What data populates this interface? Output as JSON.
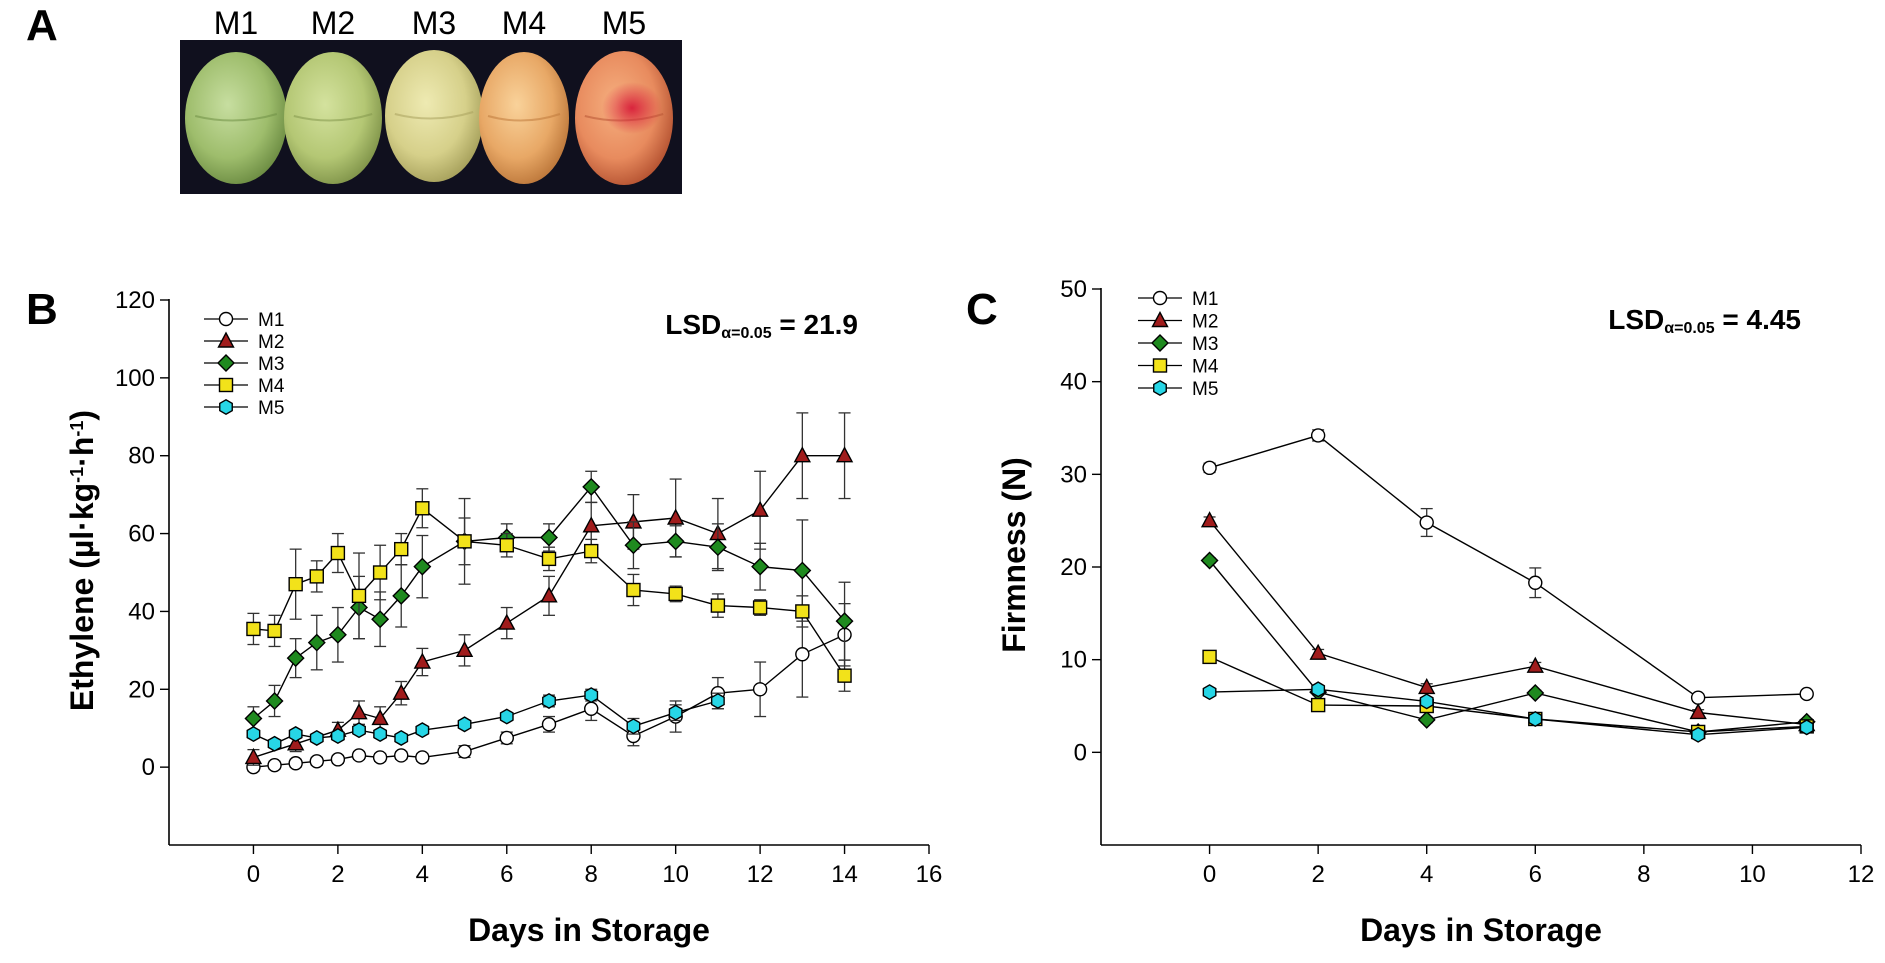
{
  "panel_a": {
    "letter": "A",
    "labels": [
      "M1",
      "M2",
      "M3",
      "M4",
      "M5"
    ],
    "fruit_colors": [
      {
        "light": "#c7dea0",
        "base": "#9ebd6c",
        "dark": "#6f8f45"
      },
      {
        "light": "#d4e29e",
        "base": "#b4c774",
        "dark": "#83974c"
      },
      {
        "light": "#eeeab2",
        "base": "#d6d08a",
        "dark": "#a9a35e"
      },
      {
        "light": "#f9d29a",
        "base": "#e8a866",
        "dark": "#bf7a3d"
      },
      {
        "light": "#f6b080",
        "base": "#e88b5e",
        "dark": "#b85634"
      }
    ],
    "blush_color": "#d81e3a",
    "background_color": "#10101e"
  },
  "chart_data": [
    {
      "panel": "B",
      "type": "line",
      "xlabel": "Days in Storage",
      "ylabel": "Ethylene (µl·kg⁻¹·h⁻¹)",
      "ylabel_parts": {
        "main": "Ethylene (µl·kg",
        "exp1": "-1",
        "mid": "·h",
        "exp2": "-1",
        "end": ")"
      },
      "xlim": [
        -2,
        16
      ],
      "ylim": [
        -20,
        120
      ],
      "xticks": [
        0,
        2,
        4,
        6,
        8,
        10,
        12,
        14,
        16
      ],
      "yticks": [
        0,
        20,
        40,
        60,
        80,
        100,
        120
      ],
      "lsd": {
        "label": "LSD",
        "subscript": "α=0.05",
        "value": "= 21.9"
      },
      "legend_position": "top-left",
      "series": [
        {
          "name": "M1",
          "marker": "circle",
          "color": "#ffffff",
          "x": [
            0,
            0.5,
            1,
            1.5,
            2,
            2.5,
            3,
            3.5,
            4,
            5,
            6,
            7,
            8,
            9,
            10,
            11,
            12,
            13,
            14
          ],
          "y": [
            0,
            0.5,
            1,
            1.5,
            2,
            3,
            2.5,
            3,
            2.5,
            4,
            7.5,
            11,
            15,
            8,
            13,
            19,
            20,
            29,
            34
          ],
          "err": [
            1,
            1,
            1,
            1,
            1,
            1,
            1,
            1,
            1,
            1.5,
            1.5,
            2,
            3,
            2.5,
            4,
            4,
            7,
            11,
            8
          ]
        },
        {
          "name": "M2",
          "marker": "triangle",
          "color": "#a01c1c",
          "x": [
            0,
            1,
            2,
            2.5,
            3,
            3.5,
            4,
            5,
            6,
            7,
            8,
            9,
            10,
            11,
            12,
            13,
            14
          ],
          "y": [
            2.5,
            6,
            9.5,
            14,
            12.5,
            19,
            27,
            30,
            37,
            44,
            62,
            63,
            64,
            60,
            66,
            80,
            80
          ],
          "err": [
            2,
            2,
            2,
            3,
            3,
            3,
            3.5,
            4,
            4,
            5,
            6,
            7,
            10,
            9,
            10,
            11,
            11
          ]
        },
        {
          "name": "M3",
          "marker": "diamond",
          "color": "#1f8a1f",
          "x": [
            0,
            0.5,
            1,
            1.5,
            2,
            2.5,
            3,
            3.5,
            4,
            5,
            6,
            7,
            8,
            9,
            10,
            11,
            12,
            13,
            14
          ],
          "y": [
            12.5,
            17,
            28,
            32,
            34,
            41,
            38,
            44,
            51.5,
            58,
            59,
            59,
            72,
            57,
            58,
            56.5,
            51.5,
            50.5,
            37.5
          ],
          "err": [
            3,
            4,
            5,
            7,
            7,
            8,
            7,
            8,
            8,
            6,
            3.5,
            3.5,
            4,
            6,
            4,
            6,
            6,
            13,
            10
          ]
        },
        {
          "name": "M4",
          "marker": "square",
          "color": "#f2e21a",
          "x": [
            0,
            0.5,
            1,
            1.5,
            2,
            2.5,
            3,
            3.5,
            4,
            5,
            6,
            7,
            8,
            9,
            10,
            11,
            12,
            13,
            14
          ],
          "y": [
            35.5,
            35,
            47,
            49,
            55,
            44,
            50,
            56,
            66.5,
            58,
            57,
            53.5,
            55.5,
            45.5,
            44.5,
            41.5,
            41,
            40,
            23.5
          ],
          "err": [
            4,
            4,
            9,
            4,
            5,
            11,
            7,
            4,
            5,
            11,
            3,
            3,
            3,
            4,
            2,
            3,
            2,
            4,
            4
          ]
        },
        {
          "name": "M5",
          "marker": "hexagon",
          "color": "#27d6e6",
          "x": [
            0,
            0.5,
            1,
            1.5,
            2,
            2.5,
            3,
            3.5,
            4,
            5,
            6,
            7,
            8,
            9,
            10,
            11
          ],
          "y": [
            8.5,
            6,
            8.5,
            7.5,
            8,
            9.5,
            8.5,
            7.5,
            9.5,
            11,
            13,
            17,
            18.5,
            10.5,
            14,
            17
          ],
          "err": [
            1,
            1,
            1,
            1,
            1,
            1,
            1,
            1,
            1,
            1,
            1,
            1.5,
            1.5,
            2,
            2,
            2
          ]
        }
      ]
    },
    {
      "panel": "C",
      "type": "line",
      "xlabel": "Days in Storage",
      "ylabel": "Firmness (N)",
      "xlim": [
        -2,
        12
      ],
      "ylim": [
        -10,
        50
      ],
      "xticks": [
        0,
        2,
        4,
        6,
        8,
        10,
        12
      ],
      "yticks": [
        0,
        10,
        20,
        30,
        40,
        50
      ],
      "lsd": {
        "label": "LSD",
        "subscript": "α=0.05",
        "value": "= 4.45"
      },
      "legend_position": "top-left",
      "series": [
        {
          "name": "M1",
          "marker": "circle",
          "color": "#ffffff",
          "x": [
            0,
            2,
            4,
            6,
            9,
            11
          ],
          "y": [
            30.7,
            34.2,
            24.8,
            18.3,
            5.9,
            6.3
          ],
          "err": [
            0.5,
            0.6,
            1.5,
            1.6,
            0.4,
            0.3
          ]
        },
        {
          "name": "M2",
          "marker": "triangle",
          "color": "#a01c1c",
          "x": [
            0,
            2,
            4,
            6,
            9,
            11
          ],
          "y": [
            25,
            10.7,
            7,
            9.3,
            4.3,
            3
          ],
          "err": [
            0.4,
            0.4,
            0.4,
            0.4,
            0.3,
            0.3
          ]
        },
        {
          "name": "M3",
          "marker": "diamond",
          "color": "#1f8a1f",
          "x": [
            0,
            2,
            4,
            6,
            9,
            11
          ],
          "y": [
            20.7,
            6.5,
            3.5,
            6.4,
            2.2,
            3.3
          ],
          "err": [
            0.3,
            0.3,
            0.3,
            0.3,
            0.3,
            0.3
          ]
        },
        {
          "name": "M4",
          "marker": "square",
          "color": "#f2e21a",
          "x": [
            0,
            2,
            4,
            6,
            9,
            11
          ],
          "y": [
            10.3,
            5.1,
            5,
            3.6,
            2.2,
            2.8
          ],
          "err": [
            0.3,
            0.3,
            0.3,
            0.3,
            0.3,
            0.3
          ]
        },
        {
          "name": "M5",
          "marker": "hexagon",
          "color": "#27d6e6",
          "x": [
            0,
            2,
            4,
            6,
            9,
            11
          ],
          "y": [
            6.5,
            6.8,
            5.5,
            3.6,
            1.9,
            2.7
          ],
          "err": [
            0.3,
            0.3,
            0.3,
            0.3,
            0.3,
            0.3
          ]
        }
      ]
    }
  ]
}
